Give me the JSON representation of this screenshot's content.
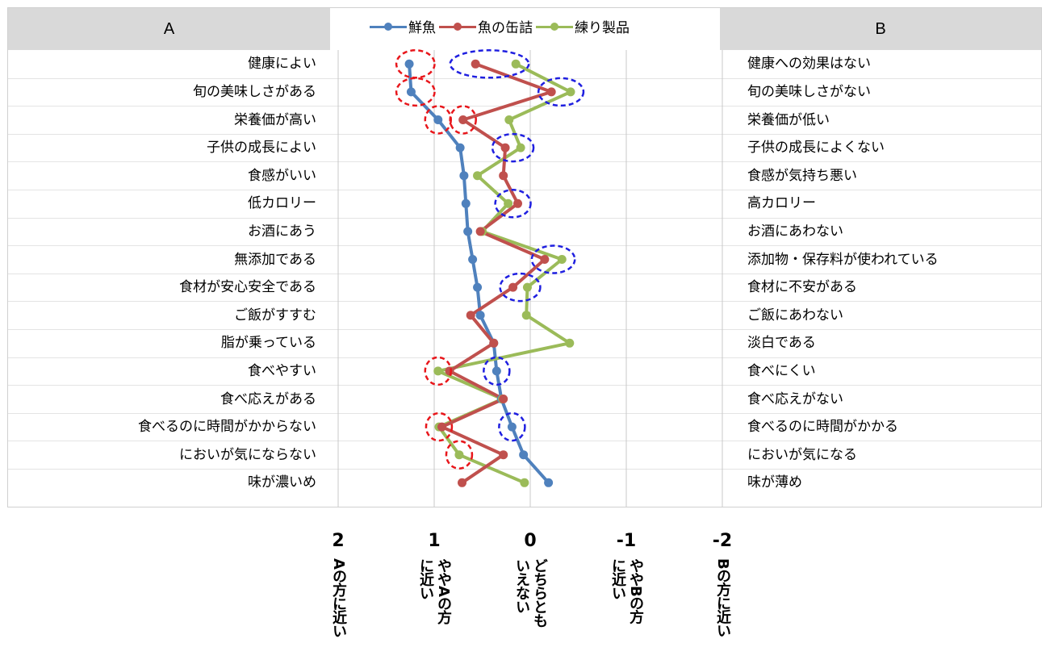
{
  "header": {
    "left": "A",
    "right": "B"
  },
  "legend_colors": {
    "fresh": "#4f81bd",
    "canned": "#c0504d",
    "processed": "#9bbb59"
  },
  "highlight_colors": {
    "red": "#e8161b",
    "blue": "#1f1fe0"
  },
  "chart_data": {
    "type": "line",
    "orientation": "vertical-profile",
    "categories_left": [
      "健康によい",
      "旬の美味しさがある",
      "栄養価が高い",
      "子供の成長によい",
      "食感がいい",
      "低カロリー",
      "お酒にあう",
      "無添加である",
      "食材が安心安全である",
      "ご飯がすすむ",
      "脂が乗っている",
      "食べやすい",
      "食べ応えがある",
      "食べるのに時間がかからない",
      "においが気にならない",
      "味が濃いめ"
    ],
    "categories_right": [
      "健康への効果はない",
      "旬の美味しさがない",
      "栄養価が低い",
      "子供の成長によくない",
      "食感が気持ち悪い",
      "高カロリー",
      "お酒にあわない",
      "添加物・保存料が使われている",
      "食材に不安がある",
      "ご飯にあわない",
      "淡白である",
      "食べにくい",
      "食べ応えがない",
      "食べるのに時間がかかる",
      "においが気になる",
      "味が薄め"
    ],
    "series": [
      {
        "name": "鮮魚",
        "values": [
          1.26,
          1.24,
          0.96,
          0.73,
          0.69,
          0.67,
          0.65,
          0.6,
          0.55,
          0.52,
          0.38,
          0.35,
          0.3,
          0.19,
          0.07,
          -0.19
        ]
      },
      {
        "name": "魚の缶詰",
        "values": [
          0.57,
          -0.22,
          0.7,
          0.26,
          0.28,
          0.13,
          0.52,
          -0.15,
          0.18,
          0.62,
          0.38,
          0.84,
          0.28,
          0.92,
          0.28,
          0.71
        ]
      },
      {
        "name": "練り製品",
        "values": [
          0.15,
          -0.42,
          0.22,
          0.1,
          0.55,
          0.23,
          0.5,
          -0.33,
          0.03,
          0.04,
          -0.41,
          0.96,
          0.29,
          0.95,
          0.74,
          0.06
        ]
      }
    ],
    "x_ticks": [
      {
        "value": "2",
        "label": "Aの方に近い"
      },
      {
        "value": "1",
        "label": "ややAの方\nに近い"
      },
      {
        "value": "0",
        "label": "どちらとも\nいえない"
      },
      {
        "value": "-1",
        "label": "ややBの方\nに近い"
      },
      {
        "value": "-2",
        "label": "Bの方に近い"
      }
    ],
    "xlim": [
      2,
      -2
    ],
    "grid": "vertical"
  }
}
